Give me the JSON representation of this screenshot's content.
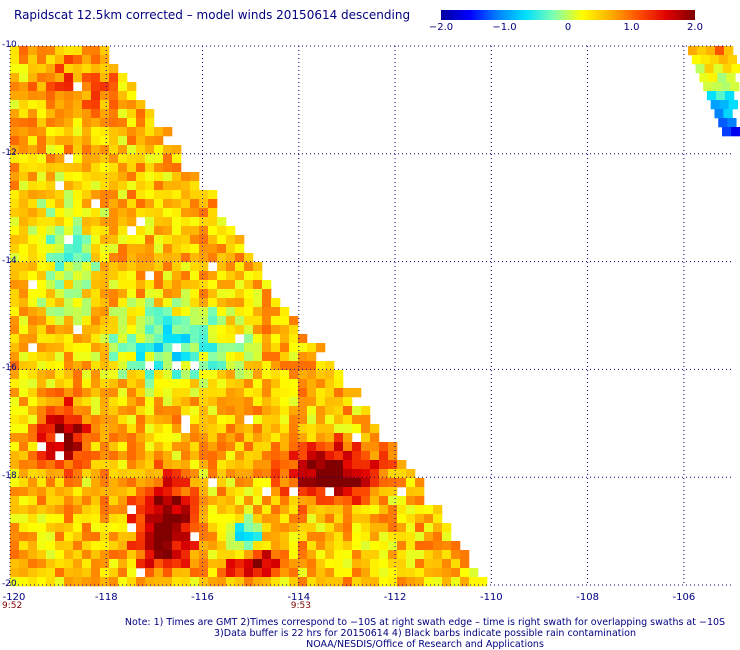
{
  "title": "Rapidscat 12.5km corrected – model winds 20150614 descending",
  "colorbar": {
    "ticks": [
      "−2.0",
      "−1.0",
      "0",
      "1.0",
      "2.0"
    ],
    "tick_values": [
      -2,
      -1,
      0,
      1,
      2
    ],
    "range": [
      -2,
      2
    ],
    "colors": [
      "#0000a0",
      "#0000ff",
      "#0080ff",
      "#00e0ff",
      "#80ffb0",
      "#ffff00",
      "#ffb000",
      "#ff5000",
      "#e00000",
      "#800000"
    ]
  },
  "axes": {
    "y_labels": [
      "-10",
      "-12",
      "-14",
      "-16",
      "-18",
      "-20"
    ],
    "y_values": [
      -10,
      -12,
      -14,
      -16,
      -18,
      -20
    ],
    "x_labels": [
      "-120",
      "-118",
      "-116",
      "-114",
      "-112",
      "-110",
      "-108",
      "-106"
    ],
    "x_values": [
      -120,
      -118,
      -116,
      -114,
      -112,
      -110,
      -108,
      -106
    ],
    "lon_range": [
      -120,
      -105
    ],
    "lat_range": [
      -20,
      -10
    ],
    "grid": "dotted"
  },
  "times": [
    "9:52",
    "9:53"
  ],
  "time_lons": [
    -120,
    -114
  ],
  "notes": [
    "Note: 1) Times are GMT 2)Times correspond to −10S at right swath edge – time is right swath for overlapping swaths at −10S",
    "3)Data buffer is 22 hrs for 20150614 4) Black barbs indicate possible rain contamination",
    "NOAA/NESDIS/Office of Research and Applications"
  ]
}
